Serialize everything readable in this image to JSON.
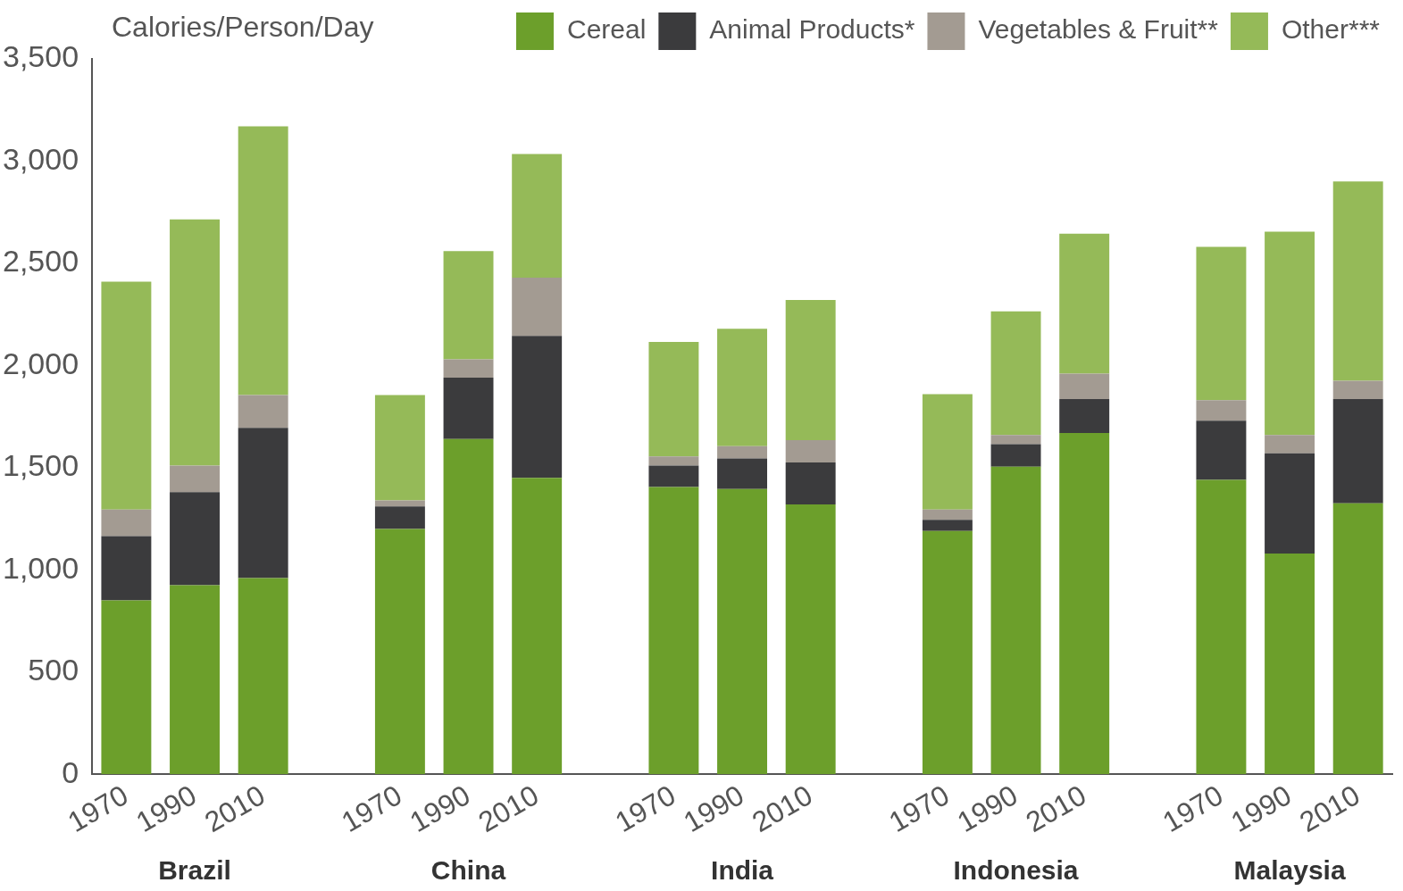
{
  "chart_data": {
    "type": "bar",
    "stacked": true,
    "ylabel": "Calories/Person/Day",
    "legend": "top right",
    "grid": false,
    "categories": [
      "1970",
      "1990",
      "2010",
      null,
      "1970",
      "1990",
      "2010",
      null,
      "1970",
      "1990",
      "2010",
      null,
      "1970",
      "1990",
      "2010",
      null,
      "1970",
      "1990",
      "2010"
    ],
    "annotations": [
      "Brazil",
      "China",
      "India",
      "Indonesia",
      "Malaysia"
    ],
    "ylim": [
      0,
      3500
    ],
    "yticks": [
      {
        "value": 0,
        "label": "0"
      },
      {
        "value": 500,
        "label": "500"
      },
      {
        "value": 1000,
        "label": "1,000"
      },
      {
        "value": 1500,
        "label": "1,500"
      },
      {
        "value": 2000,
        "label": "2,000"
      },
      {
        "value": 2500,
        "label": "2,500"
      },
      {
        "value": 3000,
        "label": "3,000"
      },
      {
        "value": 3500,
        "label": "3,500"
      }
    ],
    "series": [
      {
        "name": "Cereal",
        "color": "#6c9f2b",
        "values": [
          850,
          925,
          960,
          null,
          1200,
          1640,
          1450,
          null,
          1405,
          1395,
          1320,
          null,
          1190,
          1505,
          1670,
          null,
          1440,
          1080,
          1325
        ]
      },
      {
        "name": "Animal Products*",
        "color": "#3b3b3d",
        "values": [
          315,
          455,
          735,
          null,
          110,
          300,
          695,
          null,
          105,
          150,
          205,
          null,
          55,
          110,
          165,
          null,
          290,
          490,
          510
        ]
      },
      {
        "name": "Vegetables & Fruit**",
        "color": "#a39b92",
        "values": [
          130,
          130,
          160,
          null,
          30,
          90,
          285,
          null,
          45,
          60,
          110,
          null,
          50,
          45,
          125,
          null,
          100,
          90,
          90
        ]
      },
      {
        "name": "Other***",
        "color": "#95ba58",
        "values": [
          1115,
          1205,
          1315,
          null,
          515,
          530,
          605,
          null,
          560,
          575,
          685,
          null,
          565,
          605,
          685,
          null,
          750,
          995,
          975
        ]
      }
    ]
  }
}
